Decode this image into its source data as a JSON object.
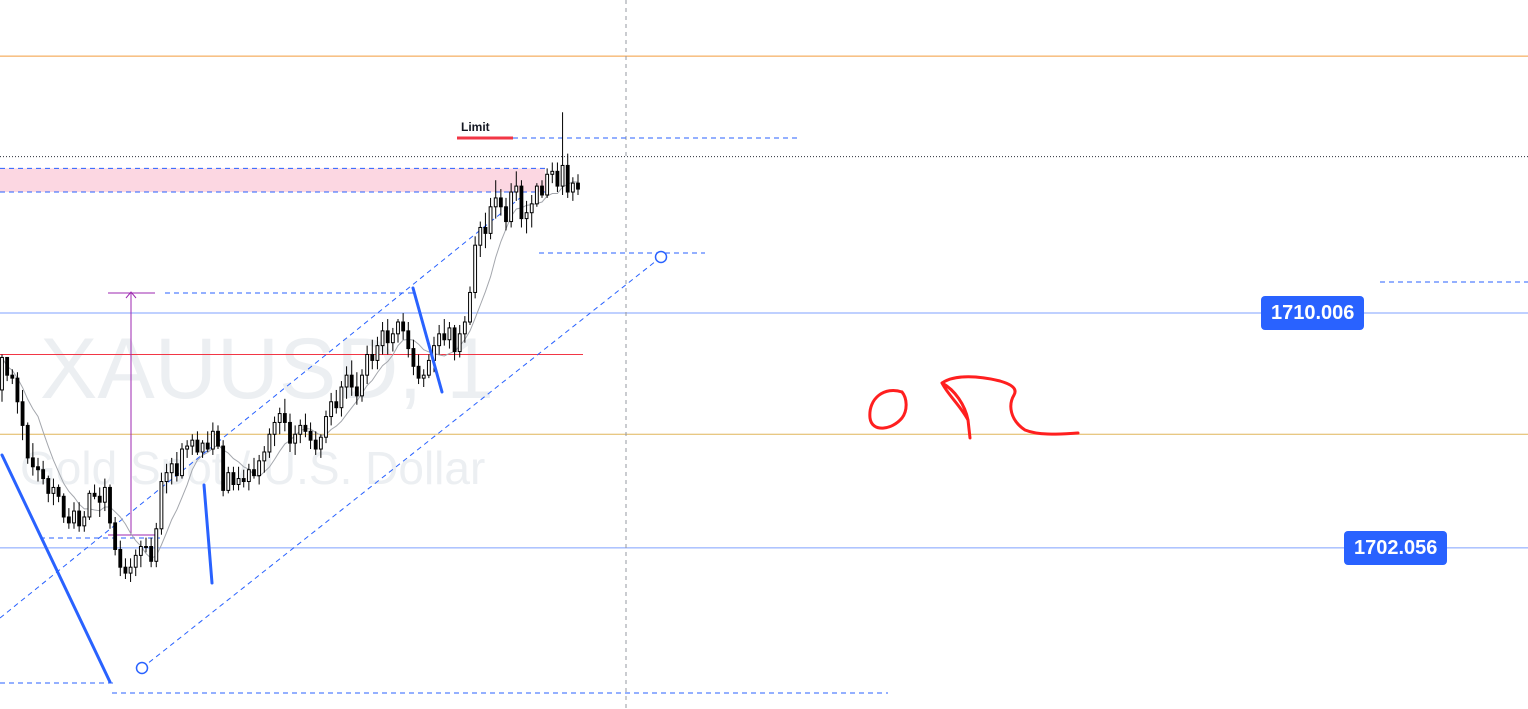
{
  "chart_data": {
    "type": "candlestick",
    "symbol": "XAUUSD, 1",
    "description": "Gold Spot / U.S. Dollar",
    "ylim": [
      1696.6,
      1720.6
    ],
    "candles_ohlc": [
      [
        1707.4,
        1708.6,
        1707.0,
        1708.5
      ],
      [
        1708.5,
        1708.5,
        1707.7,
        1707.9
      ],
      [
        1707.9,
        1708.1,
        1707.6,
        1707.8
      ],
      [
        1707.8,
        1708.0,
        1706.6,
        1707.0
      ],
      [
        1707.0,
        1707.4,
        1705.7,
        1706.2
      ],
      [
        1706.2,
        1706.3,
        1704.9,
        1705.1
      ],
      [
        1705.1,
        1705.6,
        1704.5,
        1704.8
      ],
      [
        1704.8,
        1705.1,
        1704.3,
        1704.7
      ],
      [
        1704.7,
        1705.0,
        1704.2,
        1704.4
      ],
      [
        1704.4,
        1704.5,
        1703.6,
        1703.9
      ],
      [
        1703.9,
        1704.4,
        1703.5,
        1704.1
      ],
      [
        1704.1,
        1704.2,
        1703.6,
        1703.8
      ],
      [
        1703.8,
        1703.9,
        1702.9,
        1703.1
      ],
      [
        1703.1,
        1703.4,
        1702.7,
        1702.9
      ],
      [
        1702.9,
        1703.6,
        1702.7,
        1703.3
      ],
      [
        1703.3,
        1703.6,
        1702.6,
        1702.8
      ],
      [
        1702.8,
        1703.3,
        1702.6,
        1703.1
      ],
      [
        1703.1,
        1704.0,
        1703.0,
        1703.9
      ],
      [
        1703.9,
        1704.2,
        1703.7,
        1703.8
      ],
      [
        1703.8,
        1704.1,
        1703.1,
        1703.6
      ],
      [
        1703.6,
        1704.4,
        1703.3,
        1704.1
      ],
      [
        1704.1,
        1704.2,
        1702.7,
        1702.9
      ],
      [
        1702.9,
        1703.1,
        1701.8,
        1702.0
      ],
      [
        1702.0,
        1702.3,
        1701.1,
        1701.4
      ],
      [
        1701.4,
        1701.7,
        1701.0,
        1701.2
      ],
      [
        1701.2,
        1701.7,
        1700.9,
        1701.4
      ],
      [
        1701.4,
        1702.0,
        1701.1,
        1701.8
      ],
      [
        1701.8,
        1702.3,
        1701.4,
        1702.1
      ],
      [
        1702.1,
        1702.4,
        1701.9,
        1702.1
      ],
      [
        1702.1,
        1702.4,
        1701.4,
        1701.6
      ],
      [
        1701.6,
        1702.9,
        1701.4,
        1702.7
      ],
      [
        1702.7,
        1704.6,
        1702.5,
        1704.3
      ],
      [
        1704.3,
        1704.9,
        1703.9,
        1704.6
      ],
      [
        1704.6,
        1705.1,
        1704.2,
        1704.9
      ],
      [
        1704.9,
        1705.3,
        1704.3,
        1704.5
      ],
      [
        1704.5,
        1705.6,
        1704.4,
        1705.4
      ],
      [
        1705.4,
        1705.7,
        1705.1,
        1705.5
      ],
      [
        1705.5,
        1705.9,
        1705.2,
        1705.7
      ],
      [
        1705.7,
        1706.0,
        1705.2,
        1705.3
      ],
      [
        1705.3,
        1705.7,
        1705.1,
        1705.6
      ],
      [
        1705.6,
        1706.0,
        1705.3,
        1705.4
      ],
      [
        1705.4,
        1706.3,
        1705.2,
        1706.0
      ],
      [
        1706.0,
        1706.2,
        1705.4,
        1705.5
      ],
      [
        1705.5,
        1705.7,
        1703.8,
        1704.0
      ],
      [
        1704.0,
        1704.8,
        1703.9,
        1704.6
      ],
      [
        1704.6,
        1704.8,
        1704.0,
        1704.2
      ],
      [
        1704.2,
        1704.8,
        1704.0,
        1704.4
      ],
      [
        1704.4,
        1704.7,
        1704.1,
        1704.3
      ],
      [
        1704.3,
        1704.9,
        1704.0,
        1704.7
      ],
      [
        1704.7,
        1705.1,
        1704.4,
        1704.5
      ],
      [
        1704.5,
        1705.2,
        1704.2,
        1705.0
      ],
      [
        1705.0,
        1705.5,
        1704.6,
        1705.3
      ],
      [
        1705.3,
        1706.1,
        1705.1,
        1705.9
      ],
      [
        1705.9,
        1706.5,
        1705.5,
        1706.3
      ],
      [
        1706.3,
        1706.8,
        1705.9,
        1706.6
      ],
      [
        1706.6,
        1707.1,
        1706.0,
        1706.3
      ],
      [
        1706.3,
        1706.6,
        1705.3,
        1705.6
      ],
      [
        1705.6,
        1706.2,
        1705.2,
        1705.9
      ],
      [
        1705.9,
        1706.4,
        1705.6,
        1706.2
      ],
      [
        1706.2,
        1706.6,
        1705.8,
        1706.0
      ],
      [
        1706.0,
        1706.3,
        1705.4,
        1705.7
      ],
      [
        1705.7,
        1706.0,
        1705.2,
        1705.4
      ],
      [
        1705.4,
        1705.9,
        1705.1,
        1705.8
      ],
      [
        1705.8,
        1706.7,
        1705.6,
        1706.5
      ],
      [
        1706.5,
        1707.3,
        1706.2,
        1707.0
      ],
      [
        1707.0,
        1707.4,
        1706.6,
        1706.8
      ],
      [
        1706.8,
        1707.7,
        1706.5,
        1707.5
      ],
      [
        1707.5,
        1708.2,
        1707.1,
        1707.9
      ],
      [
        1707.9,
        1708.4,
        1707.2,
        1707.5
      ],
      [
        1707.5,
        1708.0,
        1706.9,
        1707.2
      ],
      [
        1707.2,
        1708.1,
        1707.0,
        1707.9
      ],
      [
        1707.9,
        1708.9,
        1707.6,
        1708.6
      ],
      [
        1708.6,
        1709.1,
        1708.1,
        1708.4
      ],
      [
        1708.4,
        1709.2,
        1708.1,
        1708.9
      ],
      [
        1708.9,
        1709.7,
        1708.6,
        1709.4
      ],
      [
        1709.4,
        1709.8,
        1708.6,
        1709.0
      ],
      [
        1709.0,
        1709.5,
        1708.7,
        1709.3
      ],
      [
        1709.3,
        1709.8,
        1709.0,
        1709.7
      ],
      [
        1709.7,
        1710.0,
        1709.1,
        1709.4
      ],
      [
        1709.4,
        1709.7,
        1708.5,
        1708.8
      ],
      [
        1708.8,
        1709.1,
        1707.9,
        1708.2
      ],
      [
        1708.2,
        1708.6,
        1707.6,
        1707.8
      ],
      [
        1707.8,
        1708.1,
        1707.5,
        1707.9
      ],
      [
        1707.9,
        1708.6,
        1707.8,
        1708.4
      ],
      [
        1708.4,
        1709.2,
        1708.0,
        1708.9
      ],
      [
        1708.9,
        1709.6,
        1708.6,
        1709.3
      ],
      [
        1709.3,
        1709.8,
        1708.9,
        1709.1
      ],
      [
        1709.1,
        1709.7,
        1708.8,
        1709.5
      ],
      [
        1709.5,
        1709.6,
        1708.4,
        1708.7
      ],
      [
        1708.7,
        1709.6,
        1708.5,
        1709.3
      ],
      [
        1709.3,
        1709.9,
        1709.0,
        1709.7
      ],
      [
        1709.7,
        1710.9,
        1709.6,
        1710.7
      ],
      [
        1710.7,
        1712.6,
        1710.5,
        1712.3
      ],
      [
        1712.3,
        1713.1,
        1711.9,
        1712.9
      ],
      [
        1712.9,
        1713.4,
        1712.2,
        1712.7
      ],
      [
        1712.7,
        1713.9,
        1712.5,
        1713.6
      ],
      [
        1713.6,
        1714.5,
        1713.2,
        1713.9
      ],
      [
        1713.9,
        1714.2,
        1713.3,
        1713.6
      ],
      [
        1713.6,
        1713.9,
        1712.8,
        1713.1
      ],
      [
        1713.1,
        1714.4,
        1712.9,
        1714.1
      ],
      [
        1714.1,
        1714.8,
        1713.8,
        1714.3
      ],
      [
        1714.3,
        1714.5,
        1712.9,
        1713.2
      ],
      [
        1713.2,
        1713.8,
        1712.7,
        1713.4
      ],
      [
        1713.4,
        1714.0,
        1712.9,
        1713.7
      ],
      [
        1713.7,
        1714.4,
        1713.6,
        1714.3
      ],
      [
        1714.3,
        1714.5,
        1713.9,
        1714.0
      ],
      [
        1714.0,
        1714.9,
        1713.9,
        1714.7
      ],
      [
        1714.7,
        1715.1,
        1714.4,
        1714.8
      ],
      [
        1714.8,
        1715.1,
        1714.1,
        1714.3
      ],
      [
        1714.3,
        1716.8,
        1714.0,
        1715.0
      ],
      [
        1715.0,
        1715.4,
        1713.9,
        1714.1
      ],
      [
        1714.1,
        1714.6,
        1713.8,
        1714.4
      ],
      [
        1714.4,
        1714.7,
        1714.0,
        1714.2
      ]
    ],
    "horizontal_levels": [
      {
        "price": 1718.7,
        "color": "#f39c3d",
        "style": "solid"
      },
      {
        "price": 1715.3,
        "color": "#2a2e39",
        "style": "dotted"
      },
      {
        "price": 1710.006,
        "color": "#2962ff",
        "style": "solid",
        "label": "1710.006"
      },
      {
        "price": 1702.056,
        "color": "#2962ff",
        "style": "solid",
        "label": "1702.056"
      },
      {
        "price": 1705.9,
        "color": "#e0b55a",
        "style": "solid"
      },
      {
        "price": 1708.6,
        "color": "#f23645",
        "style": "solid"
      }
    ],
    "supply_zone": {
      "price_top": 1714.9,
      "price_bottom": 1714.1,
      "color": "#fcd7e2"
    },
    "limit_level": {
      "label": "Limit",
      "price": 1716.1
    }
  }
}
